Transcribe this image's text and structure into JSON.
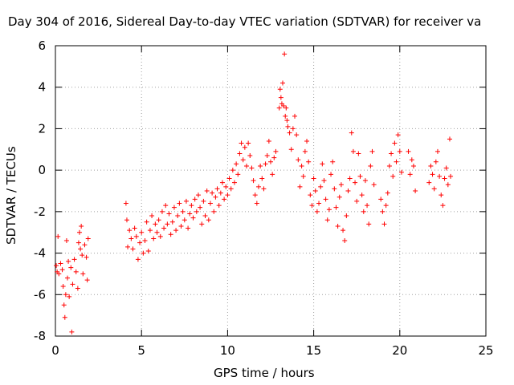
{
  "chart_data": {
    "type": "scatter",
    "title": "Day 304 of 2016, Sidereal Day-to-day VTEC variation (SDTVAR) for receiver va",
    "xlabel": "GPS time / hours",
    "ylabel": "SDTVAR / TECUs",
    "xlim": [
      0,
      25
    ],
    "ylim": [
      -8,
      6
    ],
    "xticks": [
      "0",
      "5",
      "10",
      "15",
      "20",
      "25"
    ],
    "yticks": [
      "-8",
      "-6",
      "-4",
      "-2",
      "0",
      "2",
      "4",
      "6"
    ],
    "grid": true,
    "marker": "+",
    "color": "#ff0000",
    "series": [
      {
        "points": [
          [
            0.05,
            -4.6
          ],
          [
            0.1,
            -4.9
          ],
          [
            0.15,
            -3.2
          ],
          [
            0.2,
            -5.0
          ],
          [
            0.3,
            -4.5
          ],
          [
            0.4,
            -4.8
          ],
          [
            0.45,
            -5.6
          ],
          [
            0.5,
            -6.5
          ],
          [
            0.55,
            -7.1
          ],
          [
            0.6,
            -6.0
          ],
          [
            0.65,
            -3.4
          ],
          [
            0.7,
            -5.2
          ],
          [
            0.75,
            -4.4
          ],
          [
            0.8,
            -6.1
          ],
          [
            0.9,
            -4.7
          ],
          [
            0.95,
            -7.8
          ],
          [
            1.0,
            -5.5
          ],
          [
            1.1,
            -4.3
          ],
          [
            1.2,
            -4.9
          ],
          [
            1.3,
            -5.7
          ],
          [
            1.35,
            -3.5
          ],
          [
            1.4,
            -3.0
          ],
          [
            1.45,
            -3.8
          ],
          [
            1.5,
            -2.7
          ],
          [
            1.55,
            -4.1
          ],
          [
            1.6,
            -5.0
          ],
          [
            1.7,
            -3.6
          ],
          [
            1.8,
            -4.2
          ],
          [
            1.85,
            -5.3
          ],
          [
            1.9,
            -3.3
          ],
          [
            4.1,
            -1.6
          ],
          [
            4.15,
            -2.4
          ],
          [
            4.2,
            -3.7
          ],
          [
            4.3,
            -2.9
          ],
          [
            4.4,
            -3.3
          ],
          [
            4.5,
            -3.8
          ],
          [
            4.6,
            -2.8
          ],
          [
            4.7,
            -3.2
          ],
          [
            4.8,
            -4.3
          ],
          [
            4.9,
            -3.5
          ],
          [
            5.0,
            -3.0
          ],
          [
            5.1,
            -4.0
          ],
          [
            5.2,
            -3.4
          ],
          [
            5.3,
            -2.5
          ],
          [
            5.4,
            -3.9
          ],
          [
            5.5,
            -2.9
          ],
          [
            5.6,
            -2.2
          ],
          [
            5.7,
            -3.3
          ],
          [
            5.8,
            -2.6
          ],
          [
            5.9,
            -3.0
          ],
          [
            6.0,
            -2.4
          ],
          [
            6.1,
            -3.2
          ],
          [
            6.2,
            -2.0
          ],
          [
            6.3,
            -2.8
          ],
          [
            6.4,
            -1.7
          ],
          [
            6.5,
            -2.6
          ],
          [
            6.6,
            -2.1
          ],
          [
            6.7,
            -3.1
          ],
          [
            6.8,
            -2.5
          ],
          [
            6.9,
            -1.8
          ],
          [
            7.0,
            -2.9
          ],
          [
            7.1,
            -2.2
          ],
          [
            7.2,
            -1.6
          ],
          [
            7.3,
            -2.7
          ],
          [
            7.4,
            -2.0
          ],
          [
            7.5,
            -2.4
          ],
          [
            7.6,
            -1.5
          ],
          [
            7.7,
            -2.8
          ],
          [
            7.8,
            -2.1
          ],
          [
            7.9,
            -1.7
          ],
          [
            8.0,
            -2.3
          ],
          [
            8.1,
            -1.4
          ],
          [
            8.2,
            -2.0
          ],
          [
            8.3,
            -1.2
          ],
          [
            8.4,
            -1.8
          ],
          [
            8.5,
            -2.6
          ],
          [
            8.6,
            -1.5
          ],
          [
            8.7,
            -2.2
          ],
          [
            8.8,
            -1.0
          ],
          [
            8.9,
            -2.4
          ],
          [
            9.0,
            -1.6
          ],
          [
            9.1,
            -1.1
          ],
          [
            9.2,
            -2.0
          ],
          [
            9.3,
            -1.3
          ],
          [
            9.4,
            -0.9
          ],
          [
            9.5,
            -1.7
          ],
          [
            9.6,
            -1.1
          ],
          [
            9.7,
            -0.6
          ],
          [
            9.8,
            -1.4
          ],
          [
            9.9,
            -0.8
          ],
          [
            10.0,
            -1.2
          ],
          [
            10.1,
            -0.4
          ],
          [
            10.2,
            -0.9
          ],
          [
            10.3,
            0.0
          ],
          [
            10.4,
            -0.6
          ],
          [
            10.5,
            0.3
          ],
          [
            10.6,
            -0.2
          ],
          [
            10.7,
            0.8
          ],
          [
            10.8,
            1.3
          ],
          [
            10.9,
            0.5
          ],
          [
            11.0,
            1.1
          ],
          [
            11.1,
            0.2
          ],
          [
            11.2,
            1.3
          ],
          [
            11.3,
            0.7
          ],
          [
            11.4,
            0.1
          ],
          [
            11.5,
            -0.5
          ],
          [
            11.6,
            -1.2
          ],
          [
            11.7,
            -1.6
          ],
          [
            11.8,
            -0.8
          ],
          [
            11.9,
            0.2
          ],
          [
            12.0,
            -0.4
          ],
          [
            12.1,
            -0.9
          ],
          [
            12.2,
            0.3
          ],
          [
            12.3,
            0.7
          ],
          [
            12.4,
            1.4
          ],
          [
            12.5,
            0.4
          ],
          [
            12.6,
            -0.2
          ],
          [
            12.7,
            0.6
          ],
          [
            12.8,
            0.9
          ],
          [
            13.0,
            3.0
          ],
          [
            13.05,
            3.9
          ],
          [
            13.1,
            3.5
          ],
          [
            13.15,
            3.2
          ],
          [
            13.2,
            4.2
          ],
          [
            13.25,
            3.1
          ],
          [
            13.3,
            5.6
          ],
          [
            13.35,
            2.6
          ],
          [
            13.4,
            3.0
          ],
          [
            13.45,
            2.4
          ],
          [
            13.5,
            2.1
          ],
          [
            13.6,
            1.8
          ],
          [
            13.7,
            1.0
          ],
          [
            13.8,
            2.0
          ],
          [
            13.9,
            2.6
          ],
          [
            14.0,
            1.7
          ],
          [
            14.1,
            0.5
          ],
          [
            14.2,
            -0.8
          ],
          [
            14.3,
            0.2
          ],
          [
            14.4,
            -0.3
          ],
          [
            14.5,
            0.9
          ],
          [
            14.6,
            1.4
          ],
          [
            14.7,
            0.4
          ],
          [
            14.8,
            -1.2
          ],
          [
            14.9,
            -1.7
          ],
          [
            15.0,
            -0.4
          ],
          [
            15.1,
            -1.0
          ],
          [
            15.2,
            -2.0
          ],
          [
            15.3,
            -1.6
          ],
          [
            15.4,
            -0.8
          ],
          [
            15.5,
            0.3
          ],
          [
            15.6,
            -0.5
          ],
          [
            15.7,
            -1.4
          ],
          [
            15.8,
            -2.4
          ],
          [
            15.9,
            -1.9
          ],
          [
            16.0,
            -0.2
          ],
          [
            16.1,
            0.4
          ],
          [
            16.2,
            -0.9
          ],
          [
            16.3,
            -1.8
          ],
          [
            16.4,
            -2.7
          ],
          [
            16.5,
            -1.3
          ],
          [
            16.6,
            -0.7
          ],
          [
            16.7,
            -2.9
          ],
          [
            16.8,
            -3.4
          ],
          [
            16.9,
            -2.2
          ],
          [
            17.0,
            -1.0
          ],
          [
            17.1,
            -0.4
          ],
          [
            17.2,
            1.8
          ],
          [
            17.3,
            0.9
          ],
          [
            17.4,
            -0.6
          ],
          [
            17.5,
            -1.5
          ],
          [
            17.6,
            0.8
          ],
          [
            17.7,
            -0.3
          ],
          [
            17.8,
            -1.2
          ],
          [
            17.9,
            -2.0
          ],
          [
            18.0,
            -0.5
          ],
          [
            18.1,
            -1.7
          ],
          [
            18.2,
            -2.6
          ],
          [
            18.3,
            0.2
          ],
          [
            18.4,
            0.9
          ],
          [
            18.5,
            -0.7
          ],
          [
            18.9,
            -1.4
          ],
          [
            19.0,
            -2.0
          ],
          [
            19.1,
            -2.6
          ],
          [
            19.2,
            -1.7
          ],
          [
            19.3,
            -1.1
          ],
          [
            19.4,
            0.2
          ],
          [
            19.5,
            0.8
          ],
          [
            19.6,
            -0.3
          ],
          [
            19.7,
            1.3
          ],
          [
            19.8,
            0.4
          ],
          [
            19.9,
            1.7
          ],
          [
            20.0,
            0.9
          ],
          [
            20.1,
            -0.1
          ],
          [
            20.5,
            0.9
          ],
          [
            20.6,
            -0.2
          ],
          [
            20.7,
            0.5
          ],
          [
            20.8,
            0.2
          ],
          [
            20.9,
            -1.0
          ],
          [
            21.7,
            -0.6
          ],
          [
            21.8,
            0.2
          ],
          [
            21.9,
            -0.2
          ],
          [
            22.0,
            -0.9
          ],
          [
            22.1,
            0.4
          ],
          [
            22.2,
            0.9
          ],
          [
            22.3,
            -0.3
          ],
          [
            22.4,
            -1.2
          ],
          [
            22.5,
            -1.7
          ],
          [
            22.6,
            -0.4
          ],
          [
            22.7,
            0.1
          ],
          [
            22.8,
            -0.7
          ],
          [
            22.9,
            1.5
          ],
          [
            22.95,
            -0.3
          ]
        ]
      }
    ]
  }
}
